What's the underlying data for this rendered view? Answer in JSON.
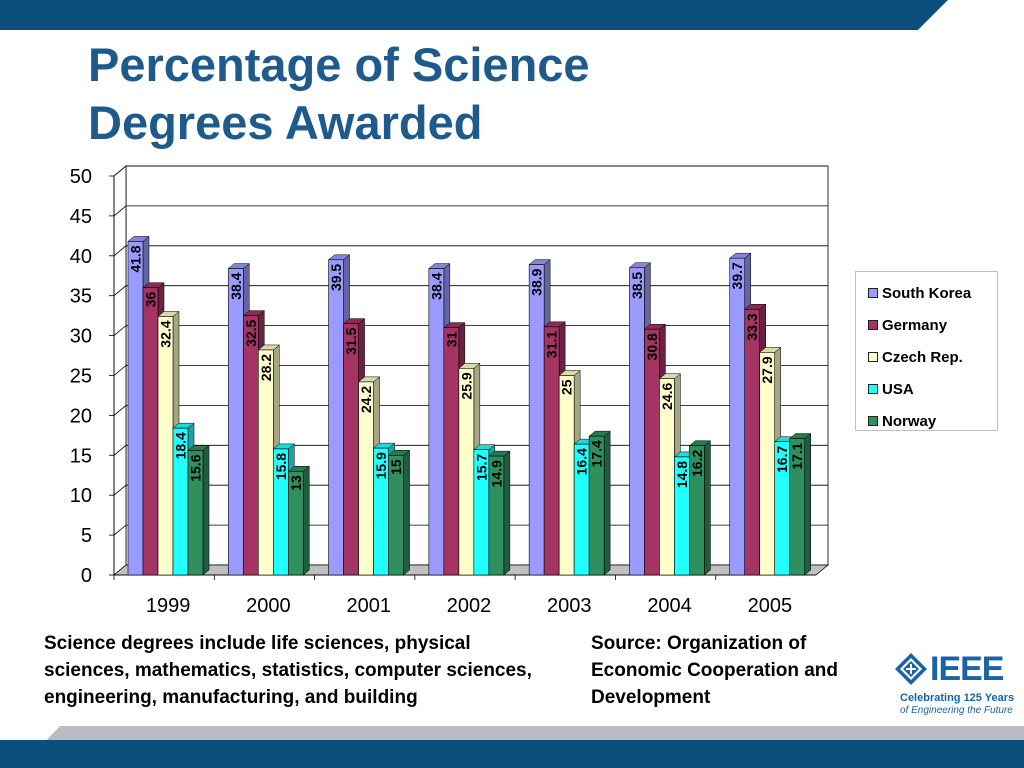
{
  "slide": {
    "title_line1": "Percentage of Science",
    "title_line2": "Degrees Awarded",
    "note_left": "Science degrees include life sciences, physical sciences, mathematics, statistics, computer sciences, engineering, manufacturing, and building",
    "note_right": "Source: Organization of Economic Cooperation and Development",
    "logo": {
      "word": "IEEE",
      "tagline1": "Celebrating 125 Years",
      "tagline2": "of Engineering the Future"
    },
    "colors": {
      "title": "#1f5a8c",
      "band": "#0b4f7c",
      "band_light": "#b9bcc1"
    }
  },
  "chart_data": {
    "type": "bar",
    "title": "",
    "xlabel": "",
    "ylabel": "",
    "ylim": [
      0,
      50
    ],
    "yticks": [
      0,
      5,
      10,
      15,
      20,
      25,
      30,
      35,
      40,
      45,
      50
    ],
    "categories": [
      "1999",
      "2000",
      "2001",
      "2002",
      "2003",
      "2004",
      "2005"
    ],
    "legend_position": "right",
    "grid": true,
    "series": [
      {
        "name": "South Korea",
        "color": "#9b9bff",
        "values": [
          41.8,
          38.4,
          39.5,
          38.4,
          38.9,
          38.5,
          39.7
        ],
        "labels": [
          "41.8",
          "38.4",
          "39.5",
          "38.4",
          "38.9",
          "38.5",
          "39.7"
        ]
      },
      {
        "name": "Germany",
        "color": "#a33463",
        "values": [
          36,
          32.5,
          31.5,
          31,
          31.1,
          30.8,
          33.3
        ],
        "labels": [
          "36",
          "32.5",
          "31.5",
          "31",
          "31.1",
          "30.8",
          "33.3"
        ]
      },
      {
        "name": "Czech Rep.",
        "color": "#ffffcc",
        "values": [
          32.4,
          28.2,
          24.2,
          25.9,
          25,
          24.6,
          27.9
        ],
        "labels": [
          "32.4",
          "28.2",
          "24.2",
          "25.9",
          "25",
          "24.6",
          "27.9"
        ]
      },
      {
        "name": "USA",
        "color": "#22ffff",
        "values": [
          18.4,
          15.8,
          15.9,
          15.7,
          16.4,
          14.8,
          16.7
        ],
        "labels": [
          "18.4",
          "15.8",
          "15.9",
          "15.7",
          "16.4",
          "14.8",
          "16.7"
        ]
      },
      {
        "name": "Norway",
        "color": "#2f8f5f",
        "values": [
          15.6,
          13,
          15,
          14.9,
          17.4,
          16.2,
          17.1
        ],
        "labels": [
          "15.6",
          "13",
          "15",
          "14.9",
          "17.4",
          "16.2",
          "17.1"
        ]
      }
    ]
  }
}
